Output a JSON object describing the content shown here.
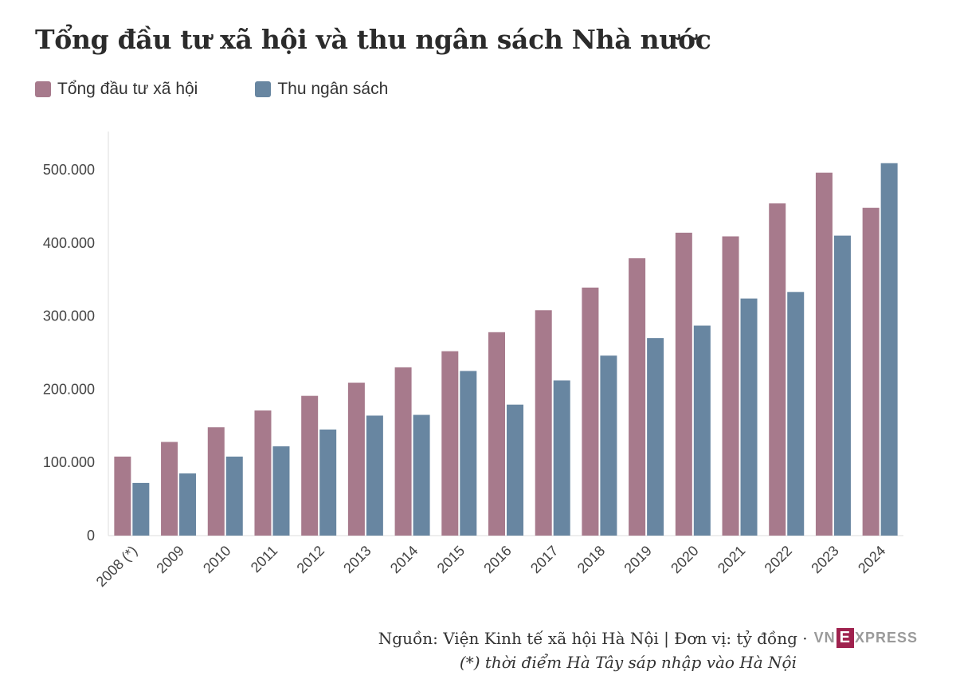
{
  "title": "Tổng đầu tư xã hội và thu ngân sách Nhà nước",
  "legend": [
    {
      "label": "Tổng đầu tư xã hội",
      "color": "#a77a8c"
    },
    {
      "label": "Thu ngân sách",
      "color": "#6886a1"
    }
  ],
  "footer": {
    "source": "Nguồn: Viện Kinh tế xã hội Hà Nội | Đơn vị: tỷ đồng ·",
    "note": "(*) thời điểm Hà Tây sáp nhập vào Hà Nội",
    "logo": {
      "vn": "VN",
      "e": "E",
      "rest": "XPRESS"
    }
  },
  "chart_data": {
    "type": "bar",
    "title": "Tổng đầu tư xã hội và thu ngân sách Nhà nước",
    "categories": [
      "2008 (*)",
      "2009",
      "2010",
      "2011",
      "2012",
      "2013",
      "2014",
      "2015",
      "2016",
      "2017",
      "2018",
      "2019",
      "2020",
      "2021",
      "2022",
      "2023",
      "2024"
    ],
    "series": [
      {
        "name": "Tổng đầu tư xã hội",
        "color": "#a77a8c",
        "values": [
          108000,
          128000,
          148000,
          171000,
          191000,
          209000,
          230000,
          252000,
          278000,
          308000,
          339000,
          379000,
          414000,
          409000,
          454000,
          496000,
          448000
        ]
      },
      {
        "name": "Thu ngân sách",
        "color": "#6886a1",
        "values": [
          72000,
          85000,
          108000,
          122000,
          145000,
          164000,
          165000,
          225000,
          179000,
          212000,
          246000,
          270000,
          287000,
          324000,
          333000,
          410000,
          509000
        ]
      }
    ],
    "yticks": [
      0,
      100000,
      200000,
      300000,
      400000,
      500000
    ],
    "ytick_labels": [
      "0",
      "100.000",
      "200.000",
      "300.000",
      "400.000",
      "500.000"
    ],
    "ylim": [
      0,
      550000
    ],
    "xlabel": "",
    "ylabel": "",
    "grid": false,
    "legend_position": "top-left"
  }
}
